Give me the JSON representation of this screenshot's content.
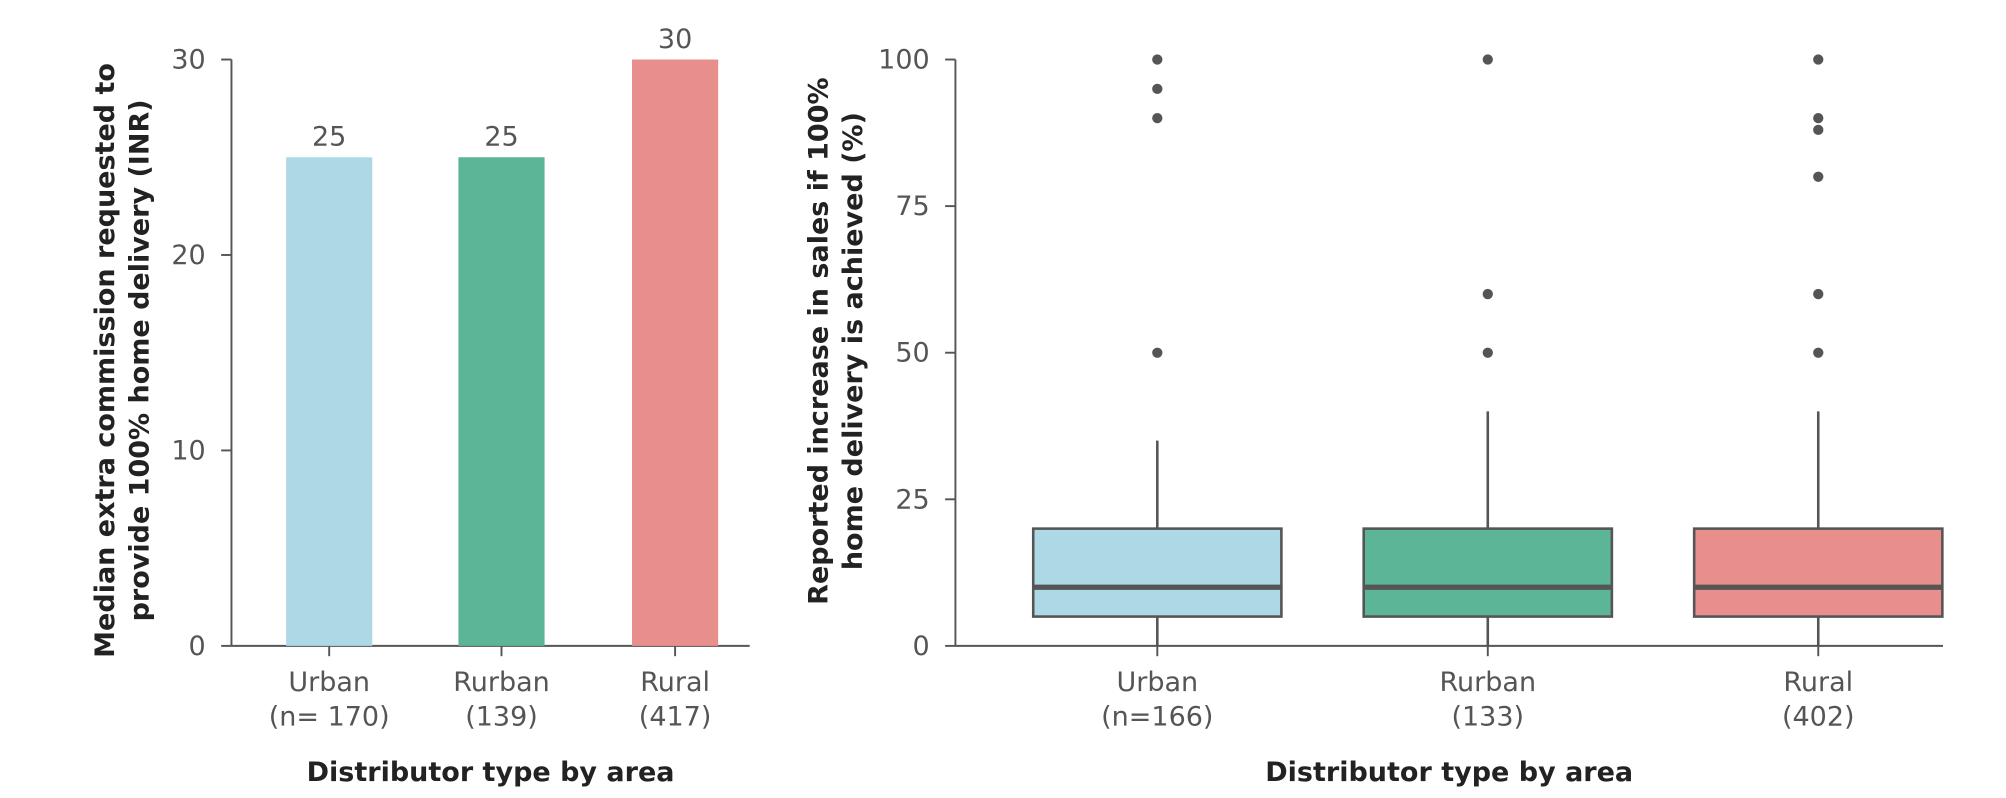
{
  "chart_data": [
    {
      "type": "bar",
      "categories": [
        "Urban\n(n= 170)",
        "Rurban\n(139)",
        "Rural\n(417)"
      ],
      "values": [
        25,
        25,
        30
      ],
      "colors": [
        "#add8e6",
        "#5bb596",
        "#e88f8e"
      ],
      "ylim": [
        0,
        30
      ],
      "yticks": [
        0,
        10,
        20,
        30
      ],
      "xlabel": "Distributor type by area",
      "ylabel": "Median extra commission requested to\nprovide 100% home delivery (INR)"
    },
    {
      "type": "box",
      "categories": [
        "Urban\n(n=166)",
        "Rurban\n(133)",
        "Rural\n(402)"
      ],
      "colors": [
        "#add8e6",
        "#5bb596",
        "#e88f8e"
      ],
      "boxes": [
        {
          "min": 0,
          "q1": 5,
          "median": 10,
          "q3": 20,
          "max": 35,
          "outliers": [
            50,
            90,
            95,
            100
          ]
        },
        {
          "min": 0,
          "q1": 5,
          "median": 10,
          "q3": 20,
          "max": 40,
          "outliers": [
            50,
            60,
            100
          ]
        },
        {
          "min": 0,
          "q1": 5,
          "median": 10,
          "q3": 20,
          "max": 40,
          "outliers": [
            50,
            60,
            80,
            88,
            90,
            100
          ]
        }
      ],
      "ylim": [
        0,
        100
      ],
      "yticks": [
        0,
        25,
        50,
        75,
        100
      ],
      "xlabel": "Distributor type by area",
      "ylabel": "Reported increase in sales if 100%\nhome delivery is achieved (%)"
    }
  ]
}
